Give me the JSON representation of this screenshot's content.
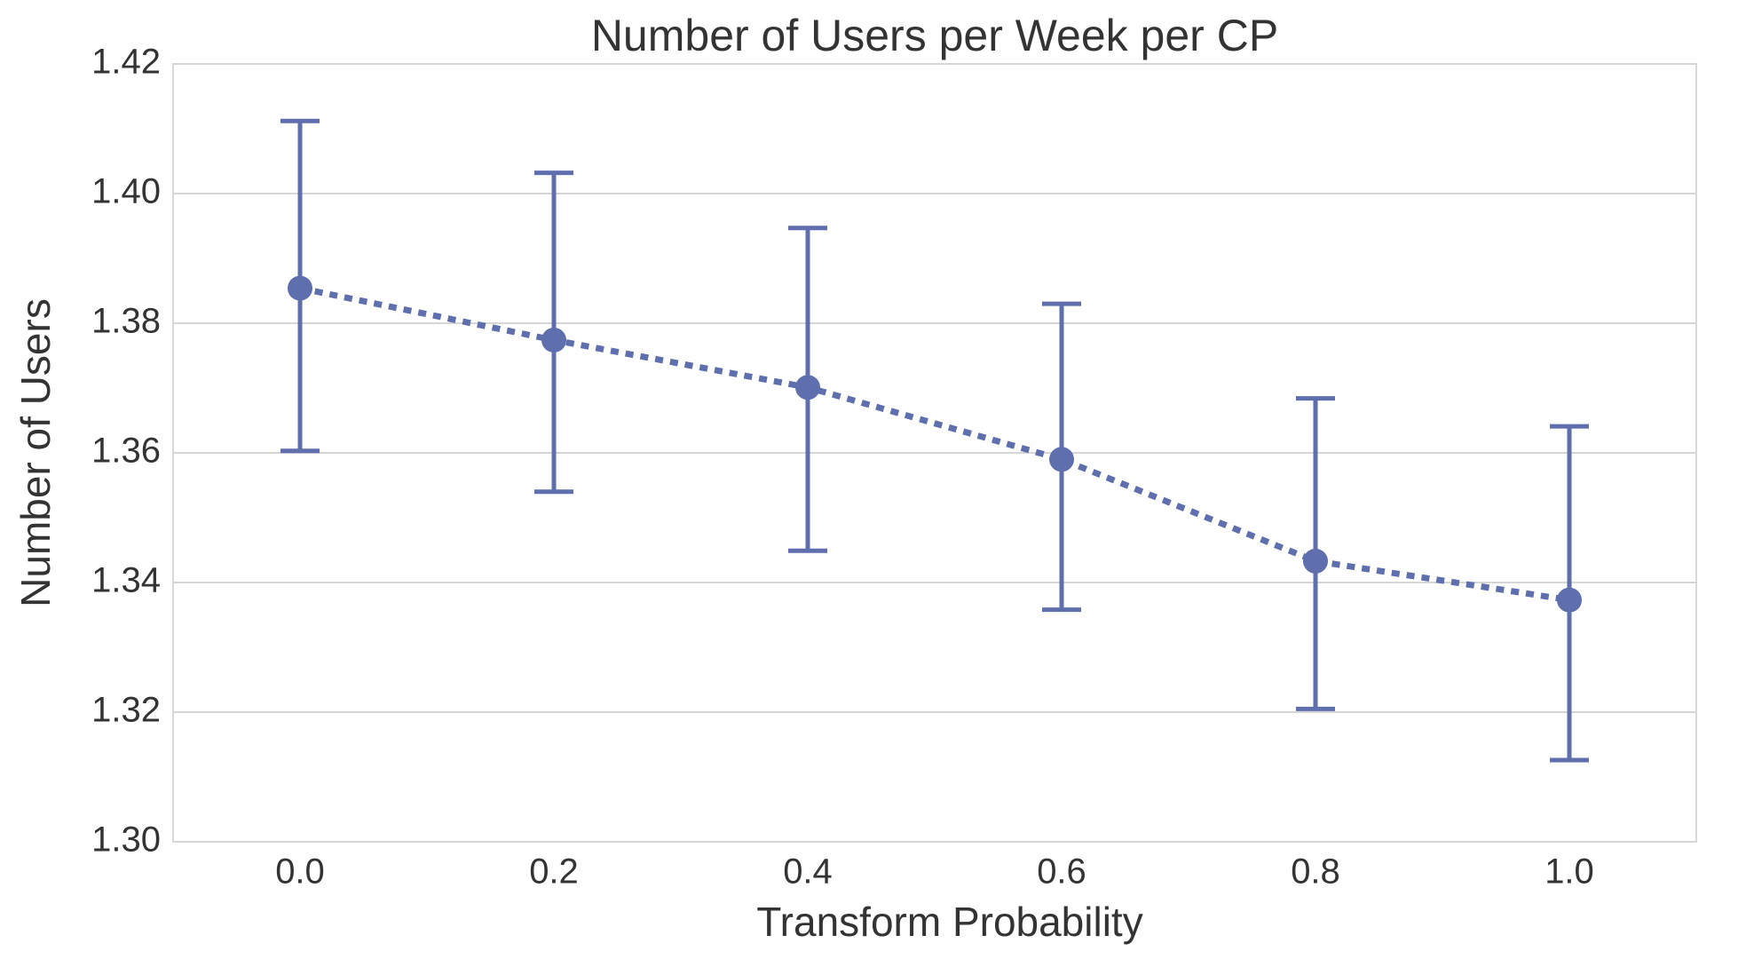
{
  "chart_data": {
    "type": "pointplot",
    "title": "Number of Users per Week per CP",
    "x_label": "Transform Probability",
    "y_label": "Number of Users",
    "categories": [
      "0.0",
      "0.2",
      "0.4",
      "0.6",
      "0.8",
      "1.0"
    ],
    "series": [
      {
        "color": "#5f6fae",
        "values": [
          1.3854,
          1.3774,
          1.3701,
          1.359,
          1.3433,
          1.3373
        ],
        "ci_low": [
          1.3603,
          1.354,
          1.3449,
          1.3358,
          1.3205,
          1.3126
        ],
        "ci_high": [
          1.4112,
          1.4032,
          1.3947,
          1.383,
          1.3684,
          1.3641
        ]
      }
    ],
    "ylim": [
      1.3,
      1.42
    ],
    "yticks": [
      {
        "value": 1.3,
        "label": "1.30"
      },
      {
        "value": 1.32,
        "label": "1.32"
      },
      {
        "value": 1.34,
        "label": "1.34"
      },
      {
        "value": 1.36,
        "label": "1.36"
      },
      {
        "value": 1.38,
        "label": "1.38"
      },
      {
        "value": 1.4,
        "label": "1.40"
      },
      {
        "value": 1.42,
        "label": "1.42"
      }
    ],
    "grid": true
  }
}
